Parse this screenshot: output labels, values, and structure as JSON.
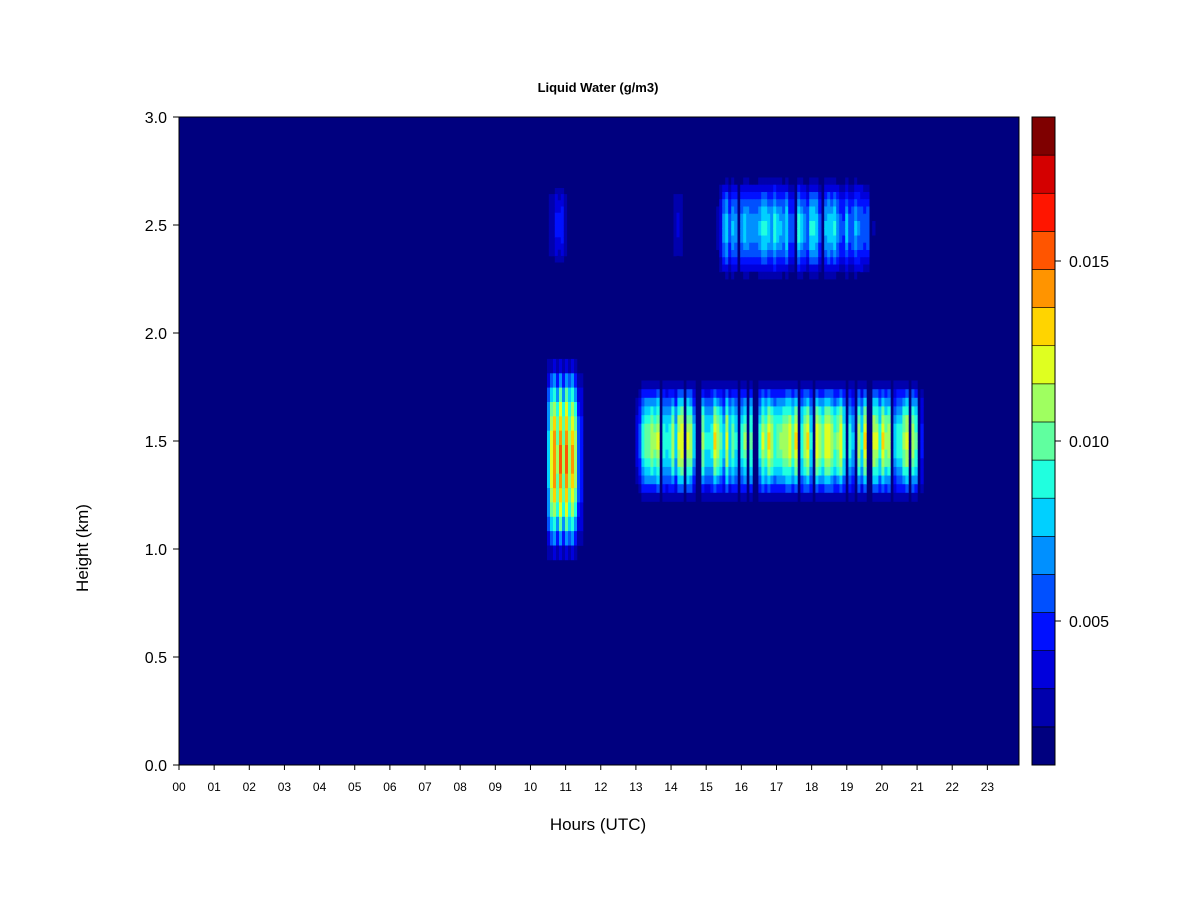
{
  "chart_data": {
    "type": "heatmap",
    "title": "Liquid Water (g/m3)",
    "xlabel": "Hours (UTC)",
    "ylabel": "Height (km)",
    "xlim": [
      0,
      23.9
    ],
    "ylim": [
      0,
      3.0
    ],
    "x_ticks": [
      "00",
      "01",
      "02",
      "03",
      "04",
      "05",
      "06",
      "07",
      "08",
      "09",
      "10",
      "11",
      "12",
      "13",
      "14",
      "15",
      "16",
      "17",
      "18",
      "19",
      "20",
      "21",
      "22",
      "23"
    ],
    "y_ticks": [
      "0.0",
      "0.5",
      "1.0",
      "1.5",
      "2.0",
      "2.5",
      "3.0"
    ],
    "y_tick_values": [
      0,
      0.5,
      1.0,
      1.5,
      2.0,
      2.5,
      3.0
    ],
    "background_color": "#00007f",
    "colorbar": {
      "range": [
        0.001,
        0.019
      ],
      "colors": [
        "#00007f",
        "#0000ad",
        "#0000dc",
        "#0010ff",
        "#0050ff",
        "#0090ff",
        "#00d0ff",
        "#20ffdf",
        "#60ff9f",
        "#9fff60",
        "#dfff20",
        "#ffd400",
        "#ff9400",
        "#ff5500",
        "#ff1500",
        "#d40000",
        "#7f0000"
      ],
      "tick_labels": [
        "0.005",
        "0.010",
        "0.015"
      ],
      "tick_values": [
        0.005,
        0.01,
        0.015
      ]
    },
    "features": [
      {
        "layer": "upper cloud",
        "x_start": 10.35,
        "x_end": 11.2,
        "y_bottom": 2.3,
        "y_top": 2.7,
        "peak_value": 0.005
      },
      {
        "layer": "upper cloud",
        "x_start": 13.9,
        "x_end": 14.4,
        "y_bottom": 2.3,
        "y_top": 2.7,
        "peak_value": 0.005
      },
      {
        "layer": "upper cloud",
        "x_start": 15.2,
        "x_end": 19.8,
        "y_bottom": 2.25,
        "y_top": 2.72,
        "peak_value": 0.009
      },
      {
        "layer": "low cloud",
        "x_start": 10.3,
        "x_end": 11.5,
        "y_bottom": 0.95,
        "y_top": 1.88,
        "peak_value": 0.016
      },
      {
        "layer": "low cloud",
        "x_start": 12.9,
        "x_end": 21.2,
        "y_bottom": 1.22,
        "y_top": 1.78,
        "peak_value": 0.013
      }
    ]
  }
}
